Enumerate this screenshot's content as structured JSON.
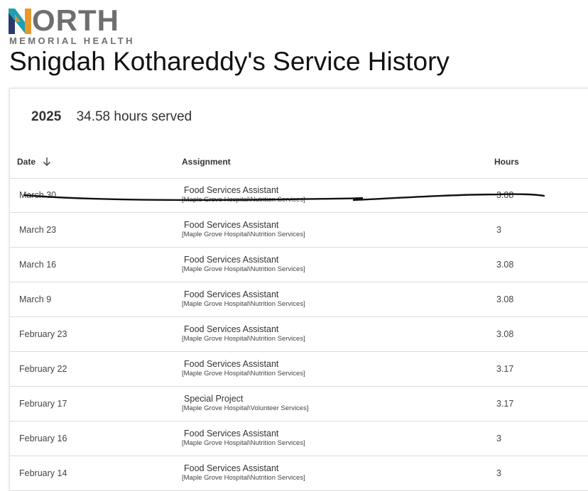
{
  "logo": {
    "wordmark": "NORTH",
    "wordmark_rest": "ORTH",
    "subtitle": "MEMORIAL HEALTH",
    "colors": {
      "teal": "#1f9fb0",
      "orange": "#e8992b",
      "navy": "#2b3a6e",
      "gray": "#6f6f6f"
    }
  },
  "page": {
    "title": "Snigdah Kothareddy's Service History"
  },
  "summary": {
    "year": "2025",
    "hours_text": "34.58 hours served"
  },
  "table": {
    "columns": {
      "date": "Date",
      "assignment": "Assignment",
      "hours": "Hours"
    },
    "sort_icon": "arrow-down-icon",
    "rows": [
      {
        "date": "March 30",
        "title": "Food Services Assistant",
        "dept": "[Maple Grove Hospital\\Nutrition Services]",
        "hours": "3.08",
        "struck_out": true
      },
      {
        "date": "March 23",
        "title": "Food Services Assistant",
        "dept": "[Maple Grove Hospital\\Nutrition Services]",
        "hours": "3"
      },
      {
        "date": "March 16",
        "title": "Food Services Assistant",
        "dept": "[Maple Grove Hospital\\Nutrition Services]",
        "hours": "3.08"
      },
      {
        "date": "March 9",
        "title": "Food Services Assistant",
        "dept": "[Maple Grove Hospital\\Nutrition Services]",
        "hours": "3.08"
      },
      {
        "date": "February 23",
        "title": "Food Services Assistant",
        "dept": "[Maple Grove Hospital\\Nutrition Services]",
        "hours": "3.08"
      },
      {
        "date": "February 22",
        "title": "Food Services Assistant",
        "dept": "[Maple Grove Hospital\\Nutrition Services]",
        "hours": "3.17"
      },
      {
        "date": "February 17",
        "title": "Special Project",
        "dept": "[Maple Grove Hospital\\Volunteer Services]",
        "hours": "3.17"
      },
      {
        "date": "February 16",
        "title": "Food Services Assistant",
        "dept": "[Maple Grove Hospital\\Nutrition Services]",
        "hours": "3"
      },
      {
        "date": "February 14",
        "title": "Food Services Assistant",
        "dept": "[Maple Grove Hospital\\Nutrition Services]",
        "hours": "3"
      }
    ]
  }
}
